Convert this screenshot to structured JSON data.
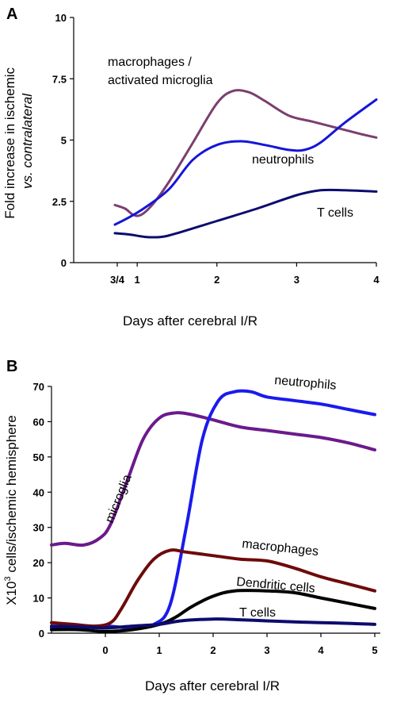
{
  "chart_data": [
    {
      "panel": "A",
      "type": "line",
      "xlabel": "Days after cerebral I/R",
      "ylabel_lines": [
        "Fold increase in ischemic",
        "vs. contralateral"
      ],
      "xlim": [
        0.75,
        4
      ],
      "ylim": [
        0,
        10
      ],
      "xticks": [
        {
          "x": 0.75,
          "label": "3/4"
        },
        {
          "x": 1,
          "label": "1"
        },
        {
          "x": 2,
          "label": "2"
        },
        {
          "x": 3,
          "label": "3"
        },
        {
          "x": 4,
          "label": "4"
        }
      ],
      "yticks": [
        {
          "y": 0,
          "label": "0"
        },
        {
          "y": 2.5,
          "label": "2.5"
        },
        {
          "y": 5,
          "label": "5"
        },
        {
          "y": 7.5,
          "label": "7.5"
        },
        {
          "y": 10,
          "label": "10"
        }
      ],
      "grid": false,
      "series": [
        {
          "name_lines": [
            "macrophages /",
            "activated microglia"
          ],
          "color": "#7b3f6e",
          "points": [
            [
              0.72,
              2.35
            ],
            [
              0.85,
              2.2
            ],
            [
              0.95,
              1.95
            ],
            [
              1.05,
              1.95
            ],
            [
              1.2,
              2.4
            ],
            [
              1.4,
              3.3
            ],
            [
              1.7,
              4.9
            ],
            [
              2.0,
              6.5
            ],
            [
              2.2,
              7.0
            ],
            [
              2.4,
              6.95
            ],
            [
              2.6,
              6.6
            ],
            [
              2.9,
              6.0
            ],
            [
              3.2,
              5.75
            ],
            [
              3.5,
              5.5
            ],
            [
              3.8,
              5.25
            ],
            [
              4.0,
              5.1
            ]
          ]
        },
        {
          "name_lines": [
            "neutrophils"
          ],
          "color": "#1515d9",
          "points": [
            [
              0.72,
              1.55
            ],
            [
              0.9,
              1.85
            ],
            [
              1.1,
              2.25
            ],
            [
              1.4,
              3.0
            ],
            [
              1.7,
              4.2
            ],
            [
              2.0,
              4.8
            ],
            [
              2.3,
              4.95
            ],
            [
              2.6,
              4.8
            ],
            [
              2.9,
              4.6
            ],
            [
              3.1,
              4.6
            ],
            [
              3.3,
              4.9
            ],
            [
              3.6,
              5.7
            ],
            [
              4.0,
              6.65
            ]
          ]
        },
        {
          "name_lines": [
            "T cells"
          ],
          "color": "#0c0c6e",
          "points": [
            [
              0.72,
              1.2
            ],
            [
              0.9,
              1.15
            ],
            [
              1.1,
              1.05
            ],
            [
              1.3,
              1.05
            ],
            [
              1.5,
              1.2
            ],
            [
              2.0,
              1.7
            ],
            [
              2.5,
              2.2
            ],
            [
              3.0,
              2.75
            ],
            [
              3.3,
              2.95
            ],
            [
              3.6,
              2.95
            ],
            [
              4.0,
              2.9
            ]
          ]
        }
      ]
    },
    {
      "panel": "B",
      "type": "line",
      "xlabel": "Days after cerebral I/R",
      "ylabel_main": "X10",
      "ylabel_sup": "3",
      "ylabel_rest": " cells/ischemic hemisphere",
      "xlim": [
        -1,
        5
      ],
      "ylim": [
        0,
        70
      ],
      "xticks": [
        {
          "x": 0,
          "label": "0"
        },
        {
          "x": 1,
          "label": "1"
        },
        {
          "x": 2,
          "label": "2"
        },
        {
          "x": 3,
          "label": "3"
        },
        {
          "x": 4,
          "label": "4"
        },
        {
          "x": 5,
          "label": "5"
        }
      ],
      "yticks": [
        {
          "y": 0,
          "label": "0"
        },
        {
          "y": 10,
          "label": "10"
        },
        {
          "y": 20,
          "label": "20"
        },
        {
          "y": 30,
          "label": "30"
        },
        {
          "y": 40,
          "label": "40"
        },
        {
          "y": 50,
          "label": "50"
        },
        {
          "y": 60,
          "label": "60"
        },
        {
          "y": 70,
          "label": "70"
        }
      ],
      "grid": false,
      "series": [
        {
          "name": "microglia",
          "color": "#6b1a8c",
          "points": [
            [
              -1,
              25
            ],
            [
              -0.75,
              25.5
            ],
            [
              -0.4,
              25
            ],
            [
              -0.1,
              27
            ],
            [
              0.1,
              31
            ],
            [
              0.4,
              43
            ],
            [
              0.7,
              55
            ],
            [
              1.0,
              61
            ],
            [
              1.3,
              62.5
            ],
            [
              1.6,
              62
            ],
            [
              2.0,
              60.5
            ],
            [
              2.5,
              58.5
            ],
            [
              3.0,
              57.5
            ],
            [
              3.5,
              56.5
            ],
            [
              4.0,
              55.5
            ],
            [
              4.5,
              54
            ],
            [
              5.0,
              52
            ]
          ]
        },
        {
          "name": "neutrophils",
          "color": "#1a1aee",
          "points": [
            [
              -1,
              1.5
            ],
            [
              -0.5,
              1.5
            ],
            [
              0,
              2
            ],
            [
              0.5,
              1.5
            ],
            [
              0.9,
              2.5
            ],
            [
              1.2,
              8
            ],
            [
              1.5,
              30
            ],
            [
              1.8,
              55
            ],
            [
              2.1,
              66
            ],
            [
              2.4,
              68.5
            ],
            [
              2.7,
              68.5
            ],
            [
              3.0,
              67
            ],
            [
              3.5,
              66
            ],
            [
              4.0,
              65
            ],
            [
              4.5,
              63.5
            ],
            [
              5.0,
              62
            ]
          ]
        },
        {
          "name": "macrophages",
          "color": "#6e0a0a",
          "points": [
            [
              -1,
              3
            ],
            [
              -0.6,
              2.5
            ],
            [
              -0.2,
              2
            ],
            [
              0.1,
              3
            ],
            [
              0.3,
              7
            ],
            [
              0.6,
              15
            ],
            [
              0.9,
              21
            ],
            [
              1.2,
              23.5
            ],
            [
              1.5,
              23
            ],
            [
              2.0,
              22
            ],
            [
              2.5,
              21
            ],
            [
              3.0,
              20.5
            ],
            [
              3.5,
              18.5
            ],
            [
              4.0,
              16
            ],
            [
              4.5,
              14
            ],
            [
              5.0,
              12
            ]
          ]
        },
        {
          "name": "Dendritic cells",
          "color": "#000000",
          "points": [
            [
              -1,
              1
            ],
            [
              -0.5,
              1
            ],
            [
              0,
              0.5
            ],
            [
              0.5,
              1
            ],
            [
              1.0,
              2.5
            ],
            [
              1.3,
              4.5
            ],
            [
              1.6,
              7.5
            ],
            [
              2.0,
              10.5
            ],
            [
              2.4,
              12
            ],
            [
              3.0,
              12
            ],
            [
              3.5,
              11.5
            ],
            [
              4.0,
              10
            ],
            [
              4.5,
              8.5
            ],
            [
              5.0,
              7
            ]
          ]
        },
        {
          "name": "T cells",
          "color": "#0c0c6e",
          "points": [
            [
              -1,
              2
            ],
            [
              -0.5,
              1.8
            ],
            [
              0,
              1.5
            ],
            [
              0.5,
              2
            ],
            [
              1.0,
              2.5
            ],
            [
              1.4,
              3.5
            ],
            [
              2.0,
              4
            ],
            [
              2.5,
              3.8
            ],
            [
              3.0,
              3.5
            ],
            [
              3.5,
              3.2
            ],
            [
              4.0,
              3
            ],
            [
              4.5,
              2.8
            ],
            [
              5.0,
              2.5
            ]
          ]
        }
      ]
    }
  ]
}
